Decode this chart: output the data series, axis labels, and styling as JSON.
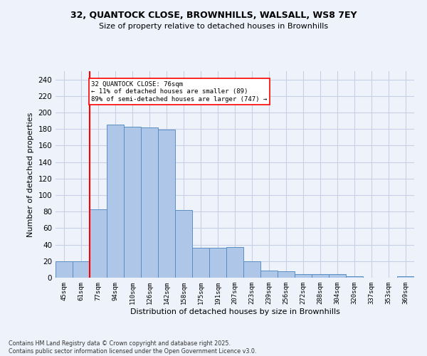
{
  "title_line1": "32, QUANTOCK CLOSE, BROWNHILLS, WALSALL, WS8 7EY",
  "title_line2": "Size of property relative to detached houses in Brownhills",
  "xlabel": "Distribution of detached houses by size in Brownhills",
  "ylabel": "Number of detached properties",
  "categories": [
    "45sqm",
    "61sqm",
    "77sqm",
    "94sqm",
    "110sqm",
    "126sqm",
    "142sqm",
    "158sqm",
    "175sqm",
    "191sqm",
    "207sqm",
    "223sqm",
    "239sqm",
    "256sqm",
    "272sqm",
    "288sqm",
    "304sqm",
    "320sqm",
    "337sqm",
    "353sqm",
    "369sqm"
  ],
  "values": [
    20,
    20,
    83,
    185,
    183,
    182,
    179,
    82,
    36,
    36,
    37,
    20,
    9,
    8,
    4,
    4,
    4,
    2,
    0,
    0,
    2
  ],
  "bar_color": "#aec6e8",
  "bar_edge_color": "#5a8fc2",
  "vline_x": 1.5,
  "vline_color": "red",
  "annotation_text": "32 QUANTOCK CLOSE: 76sqm\n← 11% of detached houses are smaller (89)\n89% of semi-detached houses are larger (747) →",
  "annotation_box_color": "white",
  "annotation_edge_color": "red",
  "ylim": [
    0,
    250
  ],
  "yticks": [
    0,
    20,
    40,
    60,
    80,
    100,
    120,
    140,
    160,
    180,
    200,
    220,
    240
  ],
  "background_color": "#eef2fb",
  "grid_color": "#c8d0e8",
  "footer_line1": "Contains HM Land Registry data © Crown copyright and database right 2025.",
  "footer_line2": "Contains public sector information licensed under the Open Government Licence v3.0."
}
